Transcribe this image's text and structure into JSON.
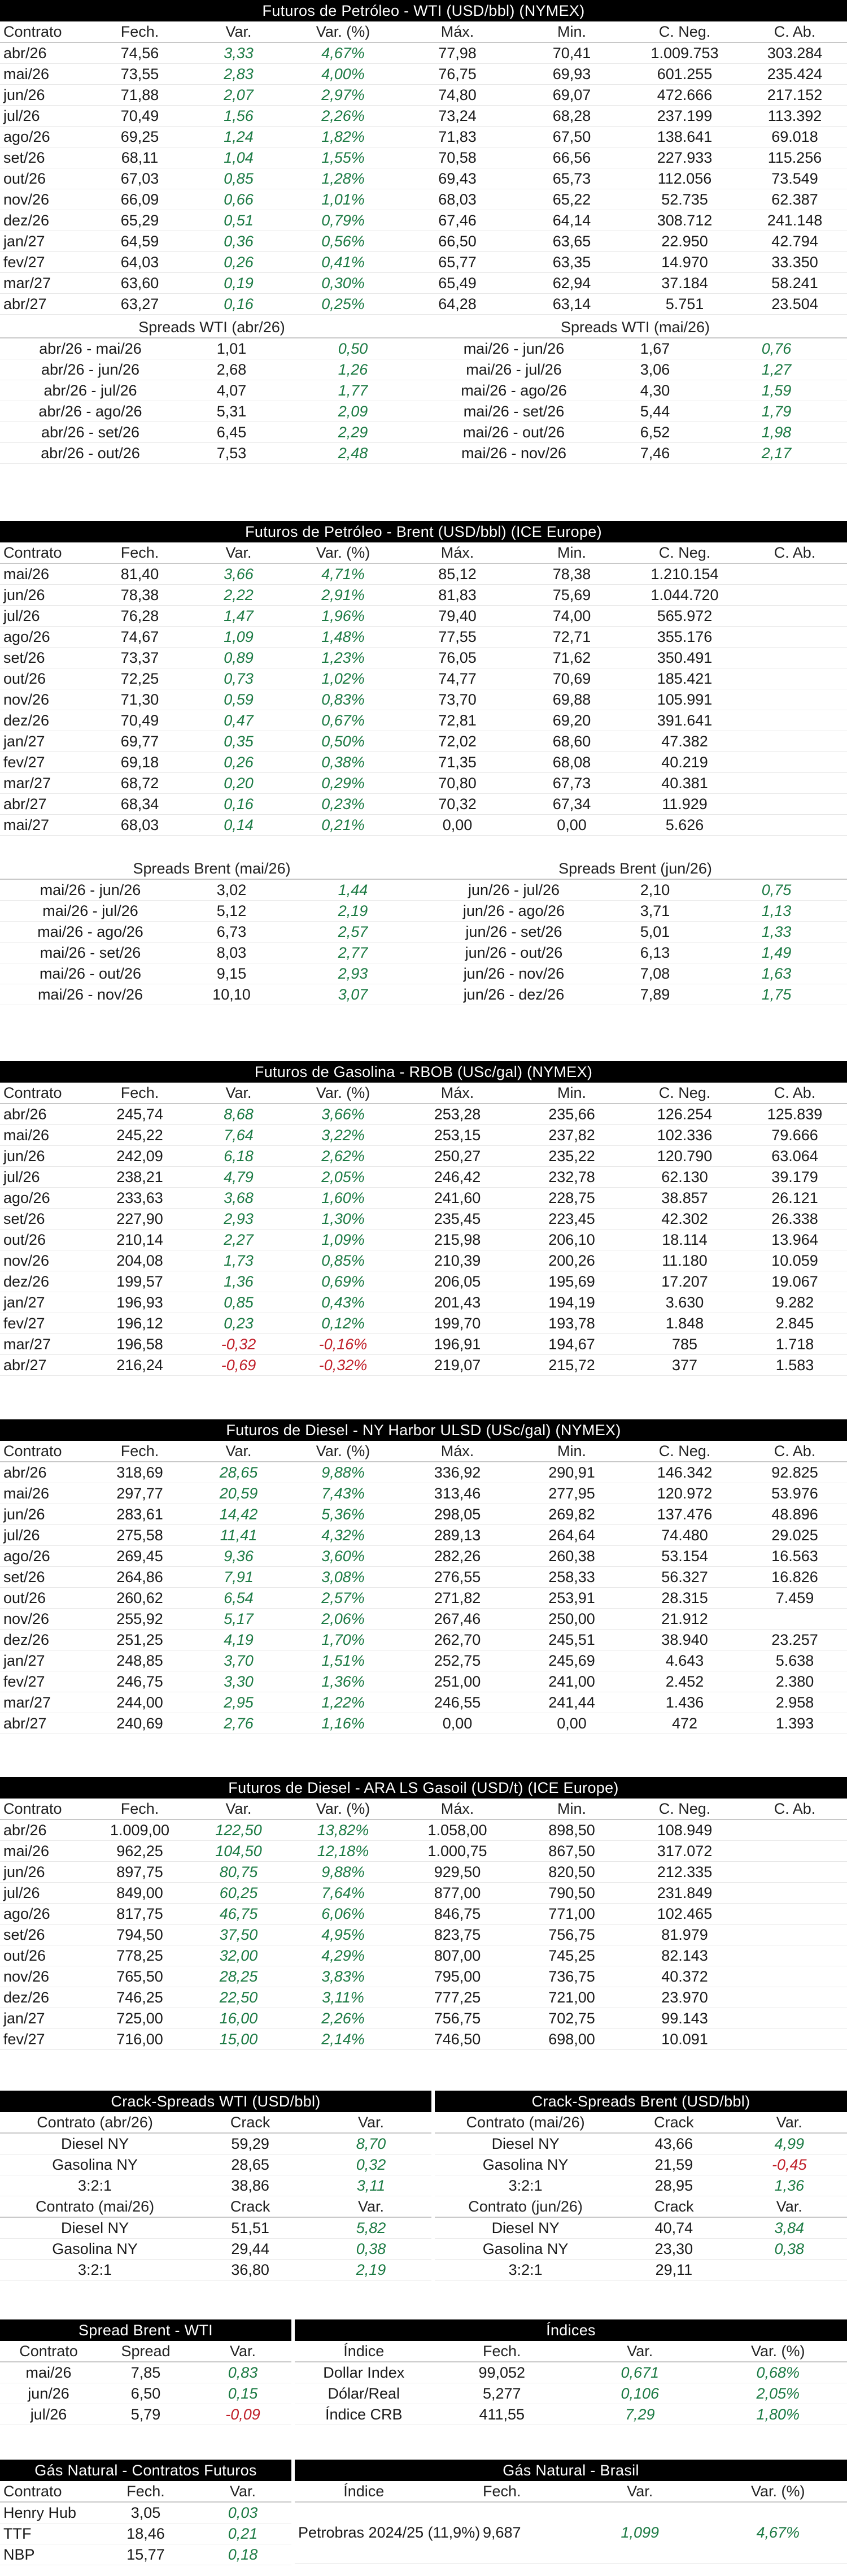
{
  "wti": {
    "title": "Futuros de Petróleo - WTI (USD/bbl) (NYMEX)",
    "headers": [
      "Contrato",
      "Fech.",
      "Var.",
      "Var. (%)",
      "Máx.",
      "Min.",
      "C. Neg.",
      "C. Ab."
    ],
    "rows": [
      [
        "abr/26",
        "74,56",
        "3,33",
        "4,67%",
        "77,98",
        "70,41",
        "1.009.753",
        "303.284"
      ],
      [
        "mai/26",
        "73,55",
        "2,83",
        "4,00%",
        "76,75",
        "69,93",
        "601.255",
        "235.424"
      ],
      [
        "jun/26",
        "71,88",
        "2,07",
        "2,97%",
        "74,80",
        "69,07",
        "472.666",
        "217.152"
      ],
      [
        "jul/26",
        "70,49",
        "1,56",
        "2,26%",
        "73,24",
        "68,28",
        "237.199",
        "113.392"
      ],
      [
        "ago/26",
        "69,25",
        "1,24",
        "1,82%",
        "71,83",
        "67,50",
        "138.641",
        "69.018"
      ],
      [
        "set/26",
        "68,11",
        "1,04",
        "1,55%",
        "70,58",
        "66,56",
        "227.933",
        "115.256"
      ],
      [
        "out/26",
        "67,03",
        "0,85",
        "1,28%",
        "69,43",
        "65,73",
        "112.056",
        "73.549"
      ],
      [
        "nov/26",
        "66,09",
        "0,66",
        "1,01%",
        "68,03",
        "65,22",
        "52.735",
        "62.387"
      ],
      [
        "dez/26",
        "65,29",
        "0,51",
        "0,79%",
        "67,46",
        "64,14",
        "308.712",
        "241.148"
      ],
      [
        "jan/27",
        "64,59",
        "0,36",
        "0,56%",
        "66,50",
        "63,65",
        "22.950",
        "42.794"
      ],
      [
        "fev/27",
        "64,03",
        "0,26",
        "0,41%",
        "65,77",
        "63,35",
        "14.970",
        "33.350"
      ],
      [
        "mar/27",
        "63,60",
        "0,19",
        "0,30%",
        "65,49",
        "62,94",
        "37.184",
        "58.241"
      ],
      [
        "abr/27",
        "63,27",
        "0,16",
        "0,25%",
        "64,28",
        "63,14",
        "5.751",
        "23.504"
      ]
    ],
    "spreads_left_title": "Spreads WTI (abr/26)",
    "spreads_right_title": "Spreads WTI (mai/26)",
    "spreads_left": [
      [
        "abr/26 - mai/26",
        "1,01",
        "0,50"
      ],
      [
        "abr/26 - jun/26",
        "2,68",
        "1,26"
      ],
      [
        "abr/26 - jul/26",
        "4,07",
        "1,77"
      ],
      [
        "abr/26 - ago/26",
        "5,31",
        "2,09"
      ],
      [
        "abr/26 - set/26",
        "6,45",
        "2,29"
      ],
      [
        "abr/26 - out/26",
        "7,53",
        "2,48"
      ]
    ],
    "spreads_right": [
      [
        "mai/26 - jun/26",
        "1,67",
        "0,76"
      ],
      [
        "mai/26 - jul/26",
        "3,06",
        "1,27"
      ],
      [
        "mai/26 - ago/26",
        "4,30",
        "1,59"
      ],
      [
        "mai/26 - set/26",
        "5,44",
        "1,79"
      ],
      [
        "mai/26 - out/26",
        "6,52",
        "1,98"
      ],
      [
        "mai/26 - nov/26",
        "7,46",
        "2,17"
      ]
    ]
  },
  "brent": {
    "title": "Futuros de Petróleo - Brent (USD/bbl) (ICE Europe)",
    "headers": [
      "Contrato",
      "Fech.",
      "Var.",
      "Var. (%)",
      "Máx.",
      "Min.",
      "C. Neg.",
      "C. Ab."
    ],
    "rows": [
      [
        "mai/26",
        "81,40",
        "3,66",
        "4,71%",
        "85,12",
        "78,38",
        "1.210.154",
        ""
      ],
      [
        "jun/26",
        "78,38",
        "2,22",
        "2,91%",
        "81,83",
        "75,69",
        "1.044.720",
        ""
      ],
      [
        "jul/26",
        "76,28",
        "1,47",
        "1,96%",
        "79,40",
        "74,00",
        "565.972",
        ""
      ],
      [
        "ago/26",
        "74,67",
        "1,09",
        "1,48%",
        "77,55",
        "72,71",
        "355.176",
        ""
      ],
      [
        "set/26",
        "73,37",
        "0,89",
        "1,23%",
        "76,05",
        "71,62",
        "350.491",
        ""
      ],
      [
        "out/26",
        "72,25",
        "0,73",
        "1,02%",
        "74,77",
        "70,69",
        "185.421",
        ""
      ],
      [
        "nov/26",
        "71,30",
        "0,59",
        "0,83%",
        "73,70",
        "69,88",
        "105.991",
        ""
      ],
      [
        "dez/26",
        "70,49",
        "0,47",
        "0,67%",
        "72,81",
        "69,20",
        "391.641",
        ""
      ],
      [
        "jan/27",
        "69,77",
        "0,35",
        "0,50%",
        "72,02",
        "68,60",
        "47.382",
        ""
      ],
      [
        "fev/27",
        "69,18",
        "0,26",
        "0,38%",
        "71,35",
        "68,08",
        "40.219",
        ""
      ],
      [
        "mar/27",
        "68,72",
        "0,20",
        "0,29%",
        "70,80",
        "67,73",
        "40.381",
        ""
      ],
      [
        "abr/27",
        "68,34",
        "0,16",
        "0,23%",
        "70,32",
        "67,34",
        "11.929",
        ""
      ],
      [
        "mai/27",
        "68,03",
        "0,14",
        "0,21%",
        "0,00",
        "0,00",
        "5.626",
        ""
      ]
    ],
    "spreads_left_title": "Spreads Brent (mai/26)",
    "spreads_right_title": "Spreads Brent (jun/26)",
    "spreads_left": [
      [
        "mai/26 - jun/26",
        "3,02",
        "1,44"
      ],
      [
        "mai/26 - jul/26",
        "5,12",
        "2,19"
      ],
      [
        "mai/26 - ago/26",
        "6,73",
        "2,57"
      ],
      [
        "mai/26 - set/26",
        "8,03",
        "2,77"
      ],
      [
        "mai/26 - out/26",
        "9,15",
        "2,93"
      ],
      [
        "mai/26 - nov/26",
        "10,10",
        "3,07"
      ]
    ],
    "spreads_right": [
      [
        "jun/26 - jul/26",
        "2,10",
        "0,75"
      ],
      [
        "jun/26 - ago/26",
        "3,71",
        "1,13"
      ],
      [
        "jun/26 - set/26",
        "5,01",
        "1,33"
      ],
      [
        "jun/26 - out/26",
        "6,13",
        "1,49"
      ],
      [
        "jun/26 - nov/26",
        "7,08",
        "1,63"
      ],
      [
        "jun/26 - dez/26",
        "7,89",
        "1,75"
      ]
    ]
  },
  "rbob": {
    "title": "Futuros de Gasolina - RBOB (USc/gal) (NYMEX)",
    "headers": [
      "Contrato",
      "Fech.",
      "Var.",
      "Var. (%)",
      "Máx.",
      "Min.",
      "C. Neg.",
      "C. Ab."
    ],
    "rows": [
      [
        "abr/26",
        "245,74",
        "8,68",
        "3,66%",
        "253,28",
        "235,66",
        "126.254",
        "125.839"
      ],
      [
        "mai/26",
        "245,22",
        "7,64",
        "3,22%",
        "253,15",
        "237,82",
        "102.336",
        "79.666"
      ],
      [
        "jun/26",
        "242,09",
        "6,18",
        "2,62%",
        "250,27",
        "235,22",
        "120.790",
        "63.064"
      ],
      [
        "jul/26",
        "238,21",
        "4,79",
        "2,05%",
        "246,42",
        "232,78",
        "62.130",
        "39.179"
      ],
      [
        "ago/26",
        "233,63",
        "3,68",
        "1,60%",
        "241,60",
        "228,75",
        "38.857",
        "26.121"
      ],
      [
        "set/26",
        "227,90",
        "2,93",
        "1,30%",
        "235,45",
        "223,45",
        "42.302",
        "26.338"
      ],
      [
        "out/26",
        "210,14",
        "2,27",
        "1,09%",
        "215,98",
        "206,10",
        "18.114",
        "13.964"
      ],
      [
        "nov/26",
        "204,08",
        "1,73",
        "0,85%",
        "210,39",
        "200,26",
        "11.180",
        "10.059"
      ],
      [
        "dez/26",
        "199,57",
        "1,36",
        "0,69%",
        "206,05",
        "195,69",
        "17.207",
        "19.067"
      ],
      [
        "jan/27",
        "196,93",
        "0,85",
        "0,43%",
        "201,43",
        "194,19",
        "3.630",
        "9.282"
      ],
      [
        "fev/27",
        "196,12",
        "0,23",
        "0,12%",
        "199,70",
        "193,78",
        "1.848",
        "2.845"
      ],
      [
        "mar/27",
        "196,58",
        "-0,32",
        "-0,16%",
        "196,91",
        "194,67",
        "785",
        "1.718"
      ],
      [
        "abr/27",
        "216,24",
        "-0,69",
        "-0,32%",
        "219,07",
        "215,72",
        "377",
        "1.583"
      ]
    ]
  },
  "ulsd": {
    "title": "Futuros de Diesel - NY Harbor ULSD (USc/gal) (NYMEX)",
    "headers": [
      "Contrato",
      "Fech.",
      "Var.",
      "Var. (%)",
      "Máx.",
      "Min.",
      "C. Neg.",
      "C. Ab."
    ],
    "rows": [
      [
        "abr/26",
        "318,69",
        "28,65",
        "9,88%",
        "336,92",
        "290,91",
        "146.342",
        "92.825"
      ],
      [
        "mai/26",
        "297,77",
        "20,59",
        "7,43%",
        "313,46",
        "277,95",
        "120.972",
        "53.976"
      ],
      [
        "jun/26",
        "283,61",
        "14,42",
        "5,36%",
        "298,05",
        "269,82",
        "137.476",
        "48.896"
      ],
      [
        "jul/26",
        "275,58",
        "11,41",
        "4,32%",
        "289,13",
        "264,64",
        "74.480",
        "29.025"
      ],
      [
        "ago/26",
        "269,45",
        "9,36",
        "3,60%",
        "282,26",
        "260,38",
        "53.154",
        "16.563"
      ],
      [
        "set/26",
        "264,86",
        "7,91",
        "3,08%",
        "276,55",
        "258,33",
        "56.327",
        "16.826"
      ],
      [
        "out/26",
        "260,62",
        "6,54",
        "2,57%",
        "271,82",
        "253,91",
        "28.315",
        "7.459"
      ],
      [
        "nov/26",
        "255,92",
        "5,17",
        "2,06%",
        "267,46",
        "250,00",
        "21.912",
        ""
      ],
      [
        "dez/26",
        "251,25",
        "4,19",
        "1,70%",
        "262,70",
        "245,51",
        "38.940",
        "23.257"
      ],
      [
        "jan/27",
        "248,85",
        "3,70",
        "1,51%",
        "252,75",
        "245,69",
        "4.643",
        "5.638"
      ],
      [
        "fev/27",
        "246,75",
        "3,30",
        "1,36%",
        "251,00",
        "241,00",
        "2.452",
        "2.380"
      ],
      [
        "mar/27",
        "244,00",
        "2,95",
        "1,22%",
        "246,55",
        "241,44",
        "1.436",
        "2.958"
      ],
      [
        "abr/27",
        "240,69",
        "2,76",
        "1,16%",
        "0,00",
        "0,00",
        "472",
        "1.393"
      ]
    ]
  },
  "gasoil": {
    "title": "Futuros de Diesel - ARA LS Gasoil (USD/t) (ICE Europe)",
    "headers": [
      "Contrato",
      "Fech.",
      "Var.",
      "Var. (%)",
      "Máx.",
      "Min.",
      "C. Neg.",
      "C. Ab."
    ],
    "rows": [
      [
        "abr/26",
        "1.009,00",
        "122,50",
        "13,82%",
        "1.058,00",
        "898,50",
        "108.949",
        ""
      ],
      [
        "mai/26",
        "962,25",
        "104,50",
        "12,18%",
        "1.000,75",
        "867,50",
        "317.072",
        ""
      ],
      [
        "jun/26",
        "897,75",
        "80,75",
        "9,88%",
        "929,50",
        "820,50",
        "212.335",
        ""
      ],
      [
        "jul/26",
        "849,00",
        "60,25",
        "7,64%",
        "877,00",
        "790,50",
        "231.849",
        ""
      ],
      [
        "ago/26",
        "817,75",
        "46,75",
        "6,06%",
        "846,75",
        "771,00",
        "102.465",
        ""
      ],
      [
        "set/26",
        "794,50",
        "37,50",
        "4,95%",
        "823,75",
        "756,75",
        "81.979",
        ""
      ],
      [
        "out/26",
        "778,25",
        "32,00",
        "4,29%",
        "807,00",
        "745,25",
        "82.143",
        ""
      ],
      [
        "nov/26",
        "765,50",
        "28,25",
        "3,83%",
        "795,00",
        "736,75",
        "40.372",
        ""
      ],
      [
        "dez/26",
        "746,25",
        "22,50",
        "3,11%",
        "777,25",
        "721,00",
        "23.970",
        ""
      ],
      [
        "jan/27",
        "725,00",
        "16,00",
        "2,26%",
        "756,75",
        "702,75",
        "99.143",
        ""
      ],
      [
        "fev/27",
        "716,00",
        "15,00",
        "2,14%",
        "746,50",
        "698,00",
        "10.091",
        ""
      ]
    ]
  },
  "crack": {
    "left_title": "Crack-Spreads WTI (USD/bbl)",
    "right_title": "Crack-Spreads Brent (USD/bbl)",
    "left_groups": [
      {
        "headers": [
          "Contrato (abr/26)",
          "Crack",
          "Var."
        ],
        "rows": [
          [
            "Diesel NY",
            "59,29",
            "8,70"
          ],
          [
            "Gasolina NY",
            "28,65",
            "0,32"
          ],
          [
            "3:2:1",
            "38,86",
            "3,11"
          ]
        ]
      },
      {
        "headers": [
          "Contrato (mai/26)",
          "Crack",
          "Var."
        ],
        "rows": [
          [
            "Diesel NY",
            "51,51",
            "5,82"
          ],
          [
            "Gasolina NY",
            "29,44",
            "0,38"
          ],
          [
            "3:2:1",
            "36,80",
            "2,19"
          ]
        ]
      }
    ],
    "right_groups": [
      {
        "headers": [
          "Contrato (mai/26)",
          "Crack",
          "Var."
        ],
        "rows": [
          [
            "Diesel NY",
            "43,66",
            "4,99"
          ],
          [
            "Gasolina NY",
            "21,59",
            "-0,45"
          ],
          [
            "3:2:1",
            "28,95",
            "1,36"
          ]
        ]
      },
      {
        "headers": [
          "Contrato (jun/26)",
          "Crack",
          "Var."
        ],
        "rows": [
          [
            "Diesel NY",
            "40,74",
            "3,84"
          ],
          [
            "Gasolina NY",
            "23,30",
            "0,38"
          ],
          [
            "3:2:1",
            "29,11",
            ""
          ]
        ]
      }
    ]
  },
  "spread_bw": {
    "title": "Spread Brent - WTI",
    "headers": [
      "Contrato",
      "Spread",
      "Var."
    ],
    "rows": [
      [
        "mai/26",
        "7,85",
        "0,83"
      ],
      [
        "jun/26",
        "6,50",
        "0,15"
      ],
      [
        "jul/26",
        "5,79",
        "-0,09"
      ]
    ]
  },
  "indices": {
    "title": "Índices",
    "headers": [
      "Índice",
      "Fech.",
      "Var.",
      "Var. (%)"
    ],
    "rows": [
      [
        "Dollar Index",
        "99,052",
        "0,671",
        "0,68%"
      ],
      [
        "Dólar/Real",
        "5,277",
        "0,106",
        "2,05%"
      ],
      [
        "Índice CRB",
        "411,55",
        "7,29",
        "1,80%"
      ]
    ]
  },
  "gas_futuros": {
    "title": "Gás Natural - Contratos Futuros",
    "headers": [
      "Contrato",
      "Fech.",
      "Var."
    ],
    "rows": [
      [
        "Henry Hub",
        "3,05",
        "0,03"
      ],
      [
        "TTF",
        "18,46",
        "0,21"
      ],
      [
        "NBP",
        "15,77",
        "0,18"
      ]
    ]
  },
  "gas_brasil": {
    "title": "Gás Natural - Brasil",
    "headers": [
      "Índice",
      "Fech.",
      "Var.",
      "Var. (%)"
    ],
    "rows": [
      [
        "Petrobras 2024/25 (11,9%)",
        "9,687",
        "1,099",
        "4,67%"
      ]
    ]
  },
  "colors": {
    "positive": "#1b7a43",
    "negative": "#c0202a",
    "header_bar": "#000000"
  }
}
